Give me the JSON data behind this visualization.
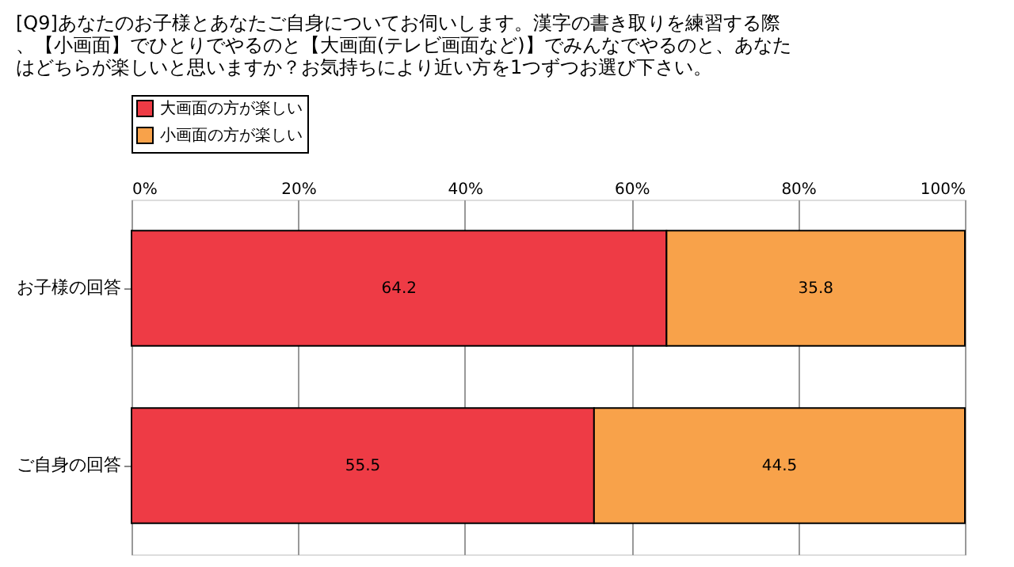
{
  "chart_data": {
    "type": "bar",
    "orientation": "horizontal",
    "stacked": true,
    "title": "[Q9]あなたのお子様とあなたご自身についてお伺いします。漢字の書き取りを練習する際、【小画面】でひとりでやるのと【大画面(テレビ画面など)】でみんなでやるのと、あなたはどちらが楽しいと思いますか？お気持ちにより近い方を1つずつお選び下さい。",
    "categories": [
      "お子様の回答",
      "ご自身の回答"
    ],
    "series": [
      {
        "name": "大画面の方が楽しい",
        "color": "#ee3b45",
        "values": [
          64.2,
          55.5
        ]
      },
      {
        "name": "小画面の方が楽しい",
        "color": "#f8a24a",
        "values": [
          35.8,
          44.5
        ]
      }
    ],
    "xlim": [
      0,
      100
    ],
    "xticks": [
      {
        "value": 0,
        "label": "0%"
      },
      {
        "value": 20,
        "label": "20%"
      },
      {
        "value": 40,
        "label": "40%"
      },
      {
        "value": 60,
        "label": "60%"
      },
      {
        "value": 80,
        "label": "80%"
      },
      {
        "value": 100,
        "label": "100%"
      }
    ],
    "grid": "x",
    "legend": "top",
    "data_labels": true
  }
}
